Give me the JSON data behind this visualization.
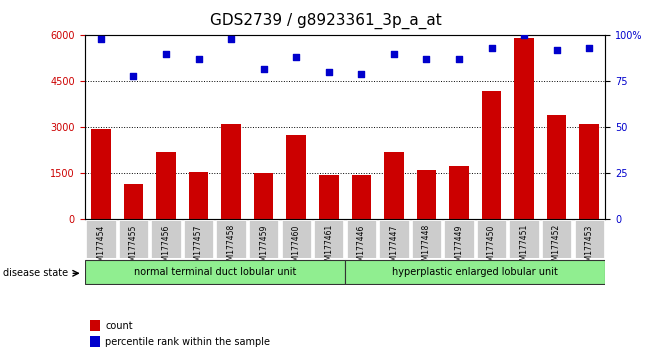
{
  "title": "GDS2739 / g8923361_3p_a_at",
  "categories": [
    "GSM177454",
    "GSM177455",
    "GSM177456",
    "GSM177457",
    "GSM177458",
    "GSM177459",
    "GSM177460",
    "GSM177461",
    "GSM177446",
    "GSM177447",
    "GSM177448",
    "GSM177449",
    "GSM177450",
    "GSM177451",
    "GSM177452",
    "GSM177453"
  ],
  "bar_values": [
    2950,
    1150,
    2200,
    1550,
    3100,
    1500,
    2750,
    1450,
    1450,
    2200,
    1600,
    1750,
    4200,
    5900,
    3400,
    3100
  ],
  "percentile_values": [
    98,
    78,
    90,
    87,
    98,
    82,
    88,
    80,
    79,
    90,
    87,
    87,
    93,
    100,
    92,
    93
  ],
  "bar_color": "#cc0000",
  "dot_color": "#0000cc",
  "ylim_left": [
    0,
    6000
  ],
  "ylim_right": [
    0,
    100
  ],
  "yticks_left": [
    0,
    1500,
    3000,
    4500,
    6000
  ],
  "yticks_right": [
    0,
    25,
    50,
    75,
    100
  ],
  "group1_label": "normal terminal duct lobular unit",
  "group2_label": "hyperplastic enlarged lobular unit",
  "group1_count": 8,
  "group2_count": 8,
  "disease_state_label": "disease state",
  "legend_count_label": "count",
  "legend_percentile_label": "percentile rank within the sample",
  "background_color": "#ffffff",
  "group_bg_color": "#90ee90",
  "xlabel_bg_color": "#cccccc",
  "title_fontsize": 11,
  "tick_fontsize": 7,
  "label_fontsize": 8
}
